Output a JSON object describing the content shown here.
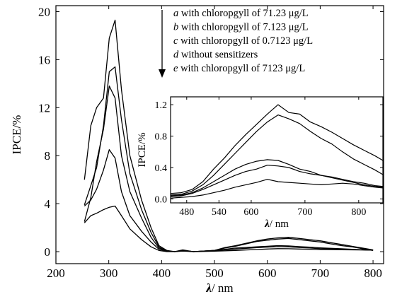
{
  "chart_data": [
    {
      "type": "line",
      "title": "",
      "xlabel_symbol": "λ",
      "xlabel_unit": "/ nm",
      "ylabel": "IPCE/%",
      "xlim": [
        200,
        820
      ],
      "ylim": [
        -1,
        20.5
      ],
      "xticks": [
        200,
        300,
        400,
        500,
        600,
        700,
        800
      ],
      "yticks": [
        0,
        4,
        8,
        12,
        16,
        20
      ],
      "grid": false,
      "legend_position": "top-right",
      "legend": [
        {
          "letter": "a",
          "text": " with chloropgyll of 71.23  μg/L"
        },
        {
          "letter": "b",
          "text": " with chloropgyll of 7.123  μg/L"
        },
        {
          "letter": "c",
          "text": " with chloropgyll of 0.7123  μg/L"
        },
        {
          "letter": "d",
          "text": " without sensitizers"
        },
        {
          "letter": "e",
          "text": " with chloropgyll of 7123  μg/L"
        }
      ],
      "series": [
        {
          "x": [
            254,
            266,
            277,
            290,
            301,
            312,
            324,
            340,
            362,
            380,
            395,
            410,
            425,
            440,
            460,
            480,
            500,
            520,
            540,
            560,
            580,
            600,
            620,
            640,
            660,
            680,
            700,
            720,
            740,
            760,
            780,
            800
          ],
          "y": [
            6.0,
            10.5,
            12.0,
            12.8,
            17.8,
            19.3,
            13.5,
            8.0,
            4.3,
            2.0,
            0.5,
            0.1,
            0.0,
            0.15,
            0.0,
            0.05,
            0.1,
            0.35,
            0.5,
            0.7,
            0.9,
            1.05,
            1.15,
            1.2,
            1.1,
            1.0,
            0.9,
            0.75,
            0.6,
            0.45,
            0.3,
            0.15
          ]
        },
        {
          "x": [
            254,
            266,
            277,
            290,
            301,
            312,
            324,
            340,
            362,
            380,
            395,
            410,
            425,
            440,
            460,
            480,
            500,
            520,
            540,
            560,
            580,
            600,
            620,
            640,
            660,
            680,
            700,
            720,
            740,
            760,
            780,
            800
          ],
          "y": [
            3.9,
            5.5,
            7.0,
            10.5,
            15.0,
            15.4,
            11.0,
            6.5,
            3.5,
            1.6,
            0.4,
            0.05,
            0.0,
            0.1,
            0.0,
            0.05,
            0.1,
            0.3,
            0.45,
            0.65,
            0.85,
            0.95,
            1.05,
            1.1,
            1.0,
            0.9,
            0.8,
            0.65,
            0.5,
            0.4,
            0.25,
            0.1
          ]
        },
        {
          "x": [
            254,
            266,
            277,
            290,
            301,
            312,
            324,
            340,
            362,
            380,
            395,
            410,
            425,
            440,
            460,
            480,
            500,
            520,
            540,
            560,
            580,
            600,
            620,
            640,
            660,
            680,
            700,
            720,
            740,
            760,
            780,
            800
          ],
          "y": [
            2.5,
            4.5,
            7.5,
            10.2,
            13.8,
            12.8,
            8.0,
            5.0,
            2.8,
            1.2,
            0.3,
            0.05,
            0.0,
            0.1,
            0.0,
            0.05,
            0.1,
            0.2,
            0.3,
            0.35,
            0.4,
            0.45,
            0.5,
            0.48,
            0.42,
            0.38,
            0.32,
            0.28,
            0.24,
            0.2,
            0.16,
            0.12
          ]
        },
        {
          "x": [
            254,
            266,
            277,
            290,
            301,
            312,
            324,
            340,
            362,
            380,
            395,
            410,
            425,
            440,
            460,
            480,
            500,
            520,
            540,
            560,
            580,
            600,
            620,
            640,
            660,
            680,
            700,
            720,
            740,
            760,
            780,
            800
          ],
          "y": [
            3.8,
            4.3,
            5.2,
            6.8,
            8.5,
            7.8,
            5.0,
            3.0,
            1.7,
            0.8,
            0.2,
            0.05,
            0.0,
            0.1,
            0.0,
            0.05,
            0.08,
            0.15,
            0.22,
            0.28,
            0.33,
            0.38,
            0.42,
            0.4,
            0.35,
            0.3,
            0.25,
            0.22,
            0.2,
            0.18,
            0.15,
            0.12
          ]
        },
        {
          "x": [
            254,
            266,
            277,
            290,
            301,
            312,
            324,
            340,
            362,
            380,
            395,
            410,
            425,
            440,
            460,
            480,
            500,
            520,
            540,
            560,
            580,
            600,
            620,
            640,
            660,
            680,
            700,
            720,
            740,
            760,
            780,
            800
          ],
          "y": [
            2.4,
            3.0,
            3.2,
            3.5,
            3.7,
            3.8,
            3.0,
            1.9,
            1.0,
            0.4,
            0.1,
            0.0,
            0.0,
            0.05,
            0.0,
            0.02,
            0.04,
            0.07,
            0.1,
            0.14,
            0.18,
            0.22,
            0.25,
            0.24,
            0.22,
            0.2,
            0.18,
            0.17,
            0.16,
            0.15,
            0.14,
            0.13
          ]
        }
      ]
    },
    {
      "type": "line",
      "title": "",
      "xlabel_symbol": "λ",
      "xlabel_unit": "/ nm",
      "ylabel": "IPCE/%",
      "xlim": [
        450,
        845
      ],
      "ylim": [
        -0.05,
        1.3
      ],
      "xticks": [
        480,
        540,
        600,
        700,
        800
      ],
      "yticks": [
        0.0,
        0.4,
        0.8,
        1.2
      ],
      "grid": false,
      "series": [
        {
          "x": [
            450,
            470,
            490,
            510,
            530,
            550,
            570,
            590,
            610,
            630,
            650,
            670,
            690,
            710,
            730,
            750,
            770,
            790,
            810,
            830,
            845
          ],
          "y": [
            0.07,
            0.08,
            0.12,
            0.22,
            0.38,
            0.52,
            0.68,
            0.82,
            0.95,
            1.08,
            1.2,
            1.1,
            1.08,
            0.98,
            0.92,
            0.85,
            0.77,
            0.69,
            0.62,
            0.55,
            0.49
          ]
        },
        {
          "x": [
            450,
            470,
            490,
            510,
            530,
            550,
            570,
            590,
            610,
            630,
            650,
            670,
            690,
            710,
            730,
            750,
            770,
            790,
            810,
            830,
            845
          ],
          "y": [
            0.05,
            0.06,
            0.1,
            0.18,
            0.3,
            0.44,
            0.58,
            0.72,
            0.86,
            0.98,
            1.07,
            1.02,
            0.96,
            0.86,
            0.77,
            0.7,
            0.6,
            0.51,
            0.44,
            0.37,
            0.31
          ]
        },
        {
          "x": [
            450,
            470,
            490,
            510,
            530,
            550,
            570,
            590,
            610,
            630,
            650,
            670,
            690,
            710,
            730,
            750,
            770,
            790,
            810,
            830,
            845
          ],
          "y": [
            0.04,
            0.05,
            0.08,
            0.14,
            0.22,
            0.3,
            0.38,
            0.44,
            0.48,
            0.5,
            0.49,
            0.44,
            0.38,
            0.35,
            0.3,
            0.27,
            0.24,
            0.21,
            0.18,
            0.16,
            0.15
          ]
        },
        {
          "x": [
            450,
            470,
            490,
            510,
            530,
            550,
            570,
            590,
            610,
            630,
            650,
            670,
            690,
            710,
            730,
            750,
            770,
            790,
            810,
            830,
            845
          ],
          "y": [
            0.03,
            0.04,
            0.07,
            0.12,
            0.18,
            0.24,
            0.3,
            0.35,
            0.38,
            0.43,
            0.42,
            0.4,
            0.35,
            0.32,
            0.3,
            0.28,
            0.25,
            0.22,
            0.2,
            0.17,
            0.16
          ]
        },
        {
          "x": [
            450,
            470,
            490,
            510,
            530,
            550,
            570,
            590,
            610,
            630,
            650,
            670,
            690,
            710,
            730,
            750,
            770,
            790,
            810,
            830,
            845
          ],
          "y": [
            0.01,
            0.02,
            0.03,
            0.05,
            0.08,
            0.11,
            0.15,
            0.18,
            0.21,
            0.25,
            0.22,
            0.21,
            0.2,
            0.19,
            0.18,
            0.19,
            0.2,
            0.19,
            0.17,
            0.15,
            0.14
          ]
        }
      ]
    }
  ]
}
